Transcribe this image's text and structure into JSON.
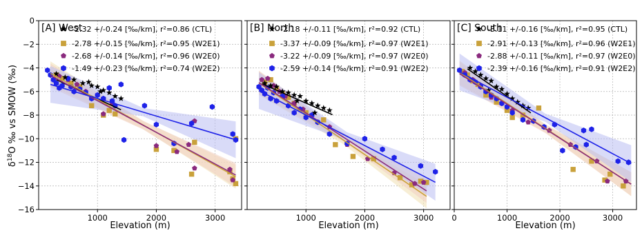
{
  "chart_data": [
    {
      "type": "scatter",
      "title": "[A] West",
      "xlabel": "Elevation (m)",
      "ylabel": "δ18O ‰ vs SMOW (‰)",
      "xlim": [
        0,
        3450
      ],
      "ylim": [
        -16,
        0
      ],
      "xticks": [
        1000,
        2000,
        3000
      ],
      "yticks": [
        0,
        -2,
        -4,
        -6,
        -8,
        -10,
        -12,
        -14,
        -16
      ],
      "grid": true,
      "legend_position": "top-right",
      "series": [
        {
          "name": "-2.32 +/-0.24 [‰/km], r²=0.86 (CTL)",
          "marker": "star",
          "color": "#000000",
          "fit": {
            "slope": -2.32,
            "intercept": -4.3,
            "x": [
              300,
              1400
            ]
          },
          "points": [
            [
              300,
              -4.5
            ],
            [
              450,
              -4.8
            ],
            [
              600,
              -5.0
            ],
            [
              750,
              -5.3
            ],
            [
              900,
              -5.5
            ],
            [
              1000,
              -5.6
            ],
            [
              1100,
              -5.9
            ],
            [
              1200,
              -6.1
            ],
            [
              1300,
              -6.4
            ],
            [
              1400,
              -6.6
            ],
            [
              1050,
              -6.0
            ],
            [
              850,
              -5.2
            ]
          ]
        },
        {
          "name": "-2.78 +/-0.15 [‰/km], r²=0.95 (W2E1)",
          "marker": "square",
          "color": "#c9a13b",
          "fit": {
            "slope": -2.78,
            "intercept": -3.9,
            "x": [
              200,
              3350
            ]
          },
          "points": [
            [
              300,
              -4.6
            ],
            [
              400,
              -4.9
            ],
            [
              550,
              -5.3
            ],
            [
              700,
              -5.6
            ],
            [
              900,
              -7.2
            ],
            [
              1100,
              -8.0
            ],
            [
              1200,
              -7.6
            ],
            [
              1300,
              -7.9
            ],
            [
              2000,
              -10.9
            ],
            [
              2300,
              -11.0
            ],
            [
              2600,
              -13.0
            ],
            [
              2650,
              -10.3
            ],
            [
              3250,
              -12.8
            ],
            [
              3300,
              -13.4
            ],
            [
              3350,
              -13.8
            ],
            [
              3350,
              -10.0
            ]
          ]
        },
        {
          "name": "-2.68 +/-0.14 [‰/km], r²=0.96 (W2E0)",
          "marker": "pentagon",
          "color": "#8a2a7e",
          "fit": {
            "slope": -2.68,
            "intercept": -4.1,
            "x": [
              200,
              3350
            ]
          },
          "points": [
            [
              350,
              -4.7
            ],
            [
              500,
              -5.0
            ],
            [
              650,
              -5.4
            ],
            [
              800,
              -6.0
            ],
            [
              1100,
              -7.9
            ],
            [
              1250,
              -7.0
            ],
            [
              2000,
              -10.6
            ],
            [
              2350,
              -11.1
            ],
            [
              2550,
              -10.5
            ],
            [
              2650,
              -12.5
            ],
            [
              2650,
              -8.5
            ],
            [
              3250,
              -12.6
            ],
            [
              3300,
              -13.5
            ]
          ]
        },
        {
          "name": "-1.49 +/-0.23 [‰/km], r²=0.74 (W2E2)",
          "marker": "hexagon",
          "color": "#1e22e8",
          "fit": {
            "slope": -1.49,
            "intercept": -5.1,
            "x": [
              200,
              3350
            ]
          },
          "points": [
            [
              150,
              -4.2
            ],
            [
              200,
              -4.6
            ],
            [
              250,
              -5.0
            ],
            [
              300,
              -5.3
            ],
            [
              350,
              -5.7
            ],
            [
              400,
              -5.5
            ],
            [
              500,
              -4.9
            ],
            [
              550,
              -5.6
            ],
            [
              600,
              -6.0
            ],
            [
              700,
              -5.8
            ],
            [
              800,
              -6.1
            ],
            [
              900,
              -6.6
            ],
            [
              1000,
              -6.3
            ],
            [
              1100,
              -6.6
            ],
            [
              1200,
              -5.7
            ],
            [
              1250,
              -6.8
            ],
            [
              1300,
              -7.2
            ],
            [
              1400,
              -5.4
            ],
            [
              1450,
              -10.1
            ],
            [
              1800,
              -7.2
            ],
            [
              2000,
              -8.8
            ],
            [
              2300,
              -10.4
            ],
            [
              2600,
              -8.7
            ],
            [
              2950,
              -7.3
            ],
            [
              3300,
              -9.6
            ],
            [
              3350,
              -10.1
            ]
          ]
        }
      ]
    },
    {
      "type": "scatter",
      "title": "[B] North",
      "xlabel": "Elevation (m)",
      "ylabel": "",
      "xlim": [
        0,
        3450
      ],
      "ylim": [
        -16,
        0
      ],
      "xticks": [
        1000,
        2000,
        3000
      ],
      "grid": true,
      "legend_position": "top-right",
      "series": [
        {
          "name": "-2.18 +/-0.11 [‰/km], r²=0.92 (CTL)",
          "marker": "star",
          "color": "#000000",
          "fit": {
            "slope": -2.18,
            "intercept": -4.8,
            "x": [
              250,
              1450
            ]
          },
          "points": [
            [
              300,
              -5.3
            ],
            [
              400,
              -5.5
            ],
            [
              500,
              -5.6
            ],
            [
              600,
              -6.0
            ],
            [
              700,
              -6.1
            ],
            [
              800,
              -6.3
            ],
            [
              900,
              -6.4
            ],
            [
              1000,
              -6.8
            ],
            [
              1100,
              -7.0
            ],
            [
              1200,
              -7.2
            ],
            [
              1300,
              -7.4
            ],
            [
              1400,
              -7.6
            ],
            [
              850,
              -6.8
            ],
            [
              1150,
              -7.8
            ]
          ]
        },
        {
          "name": "-3.37 +/-0.09 [‰/km], r²=0.97 (W2E1)",
          "marker": "square",
          "color": "#c9a13b",
          "fit": {
            "slope": -3.37,
            "intercept": -4.6,
            "x": [
              200,
              3050
            ]
          },
          "points": [
            [
              300,
              -5.2
            ],
            [
              400,
              -5.0
            ],
            [
              500,
              -5.8
            ],
            [
              600,
              -6.2
            ],
            [
              700,
              -6.5
            ],
            [
              800,
              -7.0
            ],
            [
              1000,
              -7.8
            ],
            [
              1300,
              -8.4
            ],
            [
              1500,
              -10.5
            ],
            [
              1800,
              -11.5
            ],
            [
              2150,
              -11.7
            ],
            [
              2600,
              -13.3
            ],
            [
              2800,
              -13.9
            ],
            [
              2950,
              -13.6
            ],
            [
              3050,
              -13.7
            ]
          ]
        },
        {
          "name": "-3.22 +/-0.09 [‰/km], r²=0.97 (W2E0)",
          "marker": "pentagon",
          "color": "#8a2a7e",
          "fit": {
            "slope": -3.22,
            "intercept": -4.6,
            "x": [
              200,
              3050
            ]
          },
          "points": [
            [
              250,
              -5.0
            ],
            [
              350,
              -4.9
            ],
            [
              450,
              -5.5
            ],
            [
              550,
              -6.0
            ],
            [
              650,
              -6.4
            ],
            [
              800,
              -7.0
            ],
            [
              950,
              -7.5
            ],
            [
              1100,
              -8.0
            ],
            [
              1400,
              -9.0
            ],
            [
              1700,
              -10.5
            ],
            [
              2050,
              -11.7
            ],
            [
              2500,
              -12.9
            ],
            [
              2850,
              -13.8
            ],
            [
              3000,
              -13.7
            ]
          ]
        },
        {
          "name": "-2.59 +/-0.14 [‰/km], r²=0.91 (W2E2)",
          "marker": "hexagon",
          "color": "#1e22e8",
          "fit": {
            "slope": -2.59,
            "intercept": -5.4,
            "x": [
              200,
              3200
            ]
          },
          "points": [
            [
              200,
              -5.6
            ],
            [
              250,
              -5.9
            ],
            [
              300,
              -6.2
            ],
            [
              350,
              -5.7
            ],
            [
              400,
              -6.6
            ],
            [
              450,
              -6.1
            ],
            [
              500,
              -6.8
            ],
            [
              600,
              -6.4
            ],
            [
              700,
              -7.2
            ],
            [
              800,
              -7.8
            ],
            [
              900,
              -7.5
            ],
            [
              1000,
              -8.2
            ],
            [
              1100,
              -8.0
            ],
            [
              1200,
              -8.6
            ],
            [
              1400,
              -9.6
            ],
            [
              1700,
              -10.4
            ],
            [
              2000,
              -10.0
            ],
            [
              2300,
              -10.9
            ],
            [
              2500,
              -11.6
            ],
            [
              2950,
              -12.3
            ],
            [
              3200,
              -12.8
            ]
          ]
        }
      ]
    },
    {
      "type": "scatter",
      "title": "[C] South",
      "xlabel": "Elevation (m)",
      "ylabel": "",
      "xlim": [
        0,
        3450
      ],
      "ylim": [
        -16,
        0
      ],
      "xticks": [
        0,
        1000,
        2000,
        3000
      ],
      "grid": true,
      "legend_position": "top-right",
      "series": [
        {
          "name": "-3.11 +/-0.16 [‰/km], r²=0.95 (CTL)",
          "marker": "star",
          "color": "#000000",
          "fit": {
            "slope": -3.11,
            "intercept": -3.3,
            "x": [
              250,
              1450
            ]
          },
          "points": [
            [
              300,
              -4.0
            ],
            [
              400,
              -4.3
            ],
            [
              500,
              -4.6
            ],
            [
              600,
              -4.9
            ],
            [
              700,
              -5.1
            ],
            [
              800,
              -5.6
            ],
            [
              900,
              -5.8
            ],
            [
              1000,
              -6.2
            ],
            [
              1100,
              -6.6
            ],
            [
              1200,
              -6.9
            ],
            [
              1300,
              -7.2
            ],
            [
              1400,
              -7.4
            ],
            [
              650,
              -5.9
            ]
          ]
        },
        {
          "name": "-2.91 +/-0.13 [‰/km], r²=0.96 (W2E1)",
          "marker": "square",
          "color": "#c9a13b",
          "fit": {
            "slope": -2.91,
            "intercept": -4.1,
            "x": [
              100,
              3350
            ]
          },
          "points": [
            [
              150,
              -4.3
            ],
            [
              250,
              -4.6
            ],
            [
              350,
              -5.1
            ],
            [
              450,
              -5.4
            ],
            [
              600,
              -6.3
            ],
            [
              800,
              -6.9
            ],
            [
              1000,
              -7.6
            ],
            [
              1100,
              -8.2
            ],
            [
              1300,
              -8.0
            ],
            [
              1600,
              -7.4
            ],
            [
              2250,
              -12.6
            ],
            [
              2600,
              -11.9
            ],
            [
              2850,
              -13.5
            ],
            [
              2950,
              -13.0
            ],
            [
              3200,
              -14.0
            ]
          ]
        },
        {
          "name": "-2.88 +/-0.11 [‰/km], r²=0.97 (W2E0)",
          "marker": "pentagon",
          "color": "#8a2a7e",
          "fit": {
            "slope": -2.88,
            "intercept": -4.2,
            "x": [
              100,
              3350
            ]
          },
          "points": [
            [
              200,
              -4.4
            ],
            [
              350,
              -5.0
            ],
            [
              500,
              -5.5
            ],
            [
              700,
              -6.5
            ],
            [
              900,
              -7.0
            ],
            [
              1100,
              -7.6
            ],
            [
              1400,
              -8.6
            ],
            [
              1800,
              -9.3
            ],
            [
              2200,
              -10.5
            ],
            [
              2700,
              -11.9
            ],
            [
              2900,
              -13.6
            ],
            [
              3250,
              -13.6
            ]
          ]
        },
        {
          "name": "-2.39 +/-0.16 [‰/km], r²=0.91 (W2E2)",
          "marker": "hexagon",
          "color": "#1e22e8",
          "fit": {
            "slope": -2.39,
            "intercept": -4.1,
            "x": [
              100,
              3350
            ]
          },
          "points": [
            [
              100,
              -4.2
            ],
            [
              200,
              -4.6
            ],
            [
              300,
              -5.0
            ],
            [
              400,
              -5.2
            ],
            [
              500,
              -5.6
            ],
            [
              600,
              -6.0
            ],
            [
              700,
              -6.3
            ],
            [
              800,
              -6.6
            ],
            [
              900,
              -7.0
            ],
            [
              1000,
              -7.3
            ],
            [
              1100,
              -7.8
            ],
            [
              1300,
              -8.4
            ],
            [
              1500,
              -8.5
            ],
            [
              1700,
              -9.0
            ],
            [
              1900,
              -8.8
            ],
            [
              2050,
              -11.0
            ],
            [
              2300,
              -10.7
            ],
            [
              2500,
              -10.5
            ],
            [
              2450,
              -9.3
            ],
            [
              2600,
              -9.2
            ],
            [
              3100,
              -11.9
            ],
            [
              3300,
              -12.0
            ]
          ]
        }
      ]
    }
  ]
}
